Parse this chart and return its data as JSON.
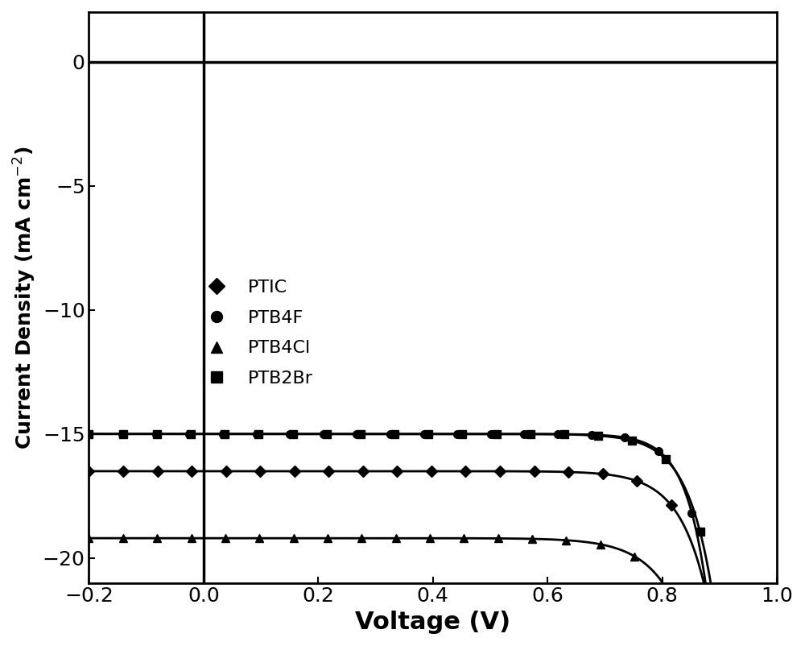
{
  "title": "",
  "xlabel": "Voltage (V)",
  "ylabel": "Current Density (mA cm$^{-2}$)",
  "xlim": [
    -0.2,
    1.0
  ],
  "ylim": [
    -21,
    2
  ],
  "xticks": [
    -0.2,
    0.0,
    0.2,
    0.4,
    0.6,
    0.8,
    1.0
  ],
  "yticks": [
    0,
    -5,
    -10,
    -15,
    -20
  ],
  "background_color": "#ffffff",
  "curves": [
    {
      "name": "PTIC",
      "Jsc": -16.5,
      "Voc": 0.935,
      "n_ideal": 1.85,
      "marker": "D",
      "markersize": 7,
      "label": "PTIC"
    },
    {
      "name": "PTB4F",
      "Jsc": -15.0,
      "Voc": 0.91,
      "n_ideal": 1.45,
      "marker": "o",
      "markersize": 7,
      "label": "PTB4F"
    },
    {
      "name": "PTB4Cl",
      "Jsc": -19.2,
      "Voc": 0.93,
      "n_ideal": 2.1,
      "marker": "^",
      "markersize": 7,
      "label": "PTB4Cl"
    },
    {
      "name": "PTB2Br",
      "Jsc": -15.0,
      "Voc": 0.925,
      "n_ideal": 1.7,
      "marker": "s",
      "markersize": 7,
      "label": "PTB2Br"
    }
  ],
  "n_markers": 20,
  "xlabel_fontsize": 22,
  "ylabel_fontsize": 18,
  "tick_fontsize": 18,
  "legend_fontsize": 16,
  "linewidth": 2.0,
  "spine_linewidth": 2.0,
  "axline_linewidth": 2.5
}
